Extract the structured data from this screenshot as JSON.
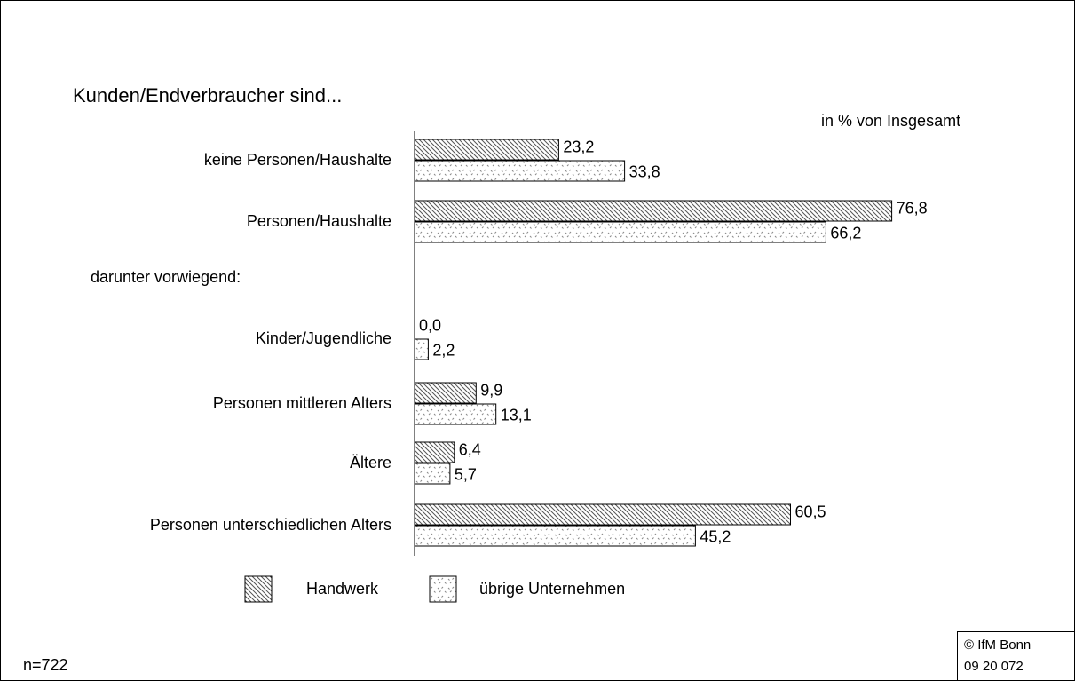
{
  "chart_data": {
    "type": "bar",
    "orientation": "horizontal",
    "title": "Kunden/Endverbraucher sind...",
    "subtitle": "in % von Insgesamt",
    "categories": [
      "keine Personen/Haushalte",
      "Personen/Haushalte",
      "darunter vorwiegend:",
      "Kinder/Jugendliche",
      "Personen mittleren Alters",
      "Ältere",
      "Personen unterschiedlichen Alters"
    ],
    "series": [
      {
        "name": "Handwerk",
        "color": "#000000",
        "pattern": "hatch",
        "values": [
          23.2,
          76.8,
          null,
          0.0,
          9.9,
          6.4,
          60.5
        ],
        "value_labels": [
          "23,2",
          "76,8",
          null,
          "0,0",
          "9,9",
          "6,4",
          "60,5"
        ]
      },
      {
        "name": "übrige Unternehmen",
        "color": "#000000",
        "pattern": "dots",
        "values": [
          33.8,
          66.2,
          null,
          2.2,
          13.1,
          5.7,
          45.2
        ],
        "value_labels": [
          "33,8",
          "66,2",
          null,
          "2,2",
          "13,1",
          "5,7",
          "45,2"
        ]
      }
    ],
    "note": "n=722",
    "source": [
      "© IfM Bonn",
      "09 20 072"
    ]
  }
}
